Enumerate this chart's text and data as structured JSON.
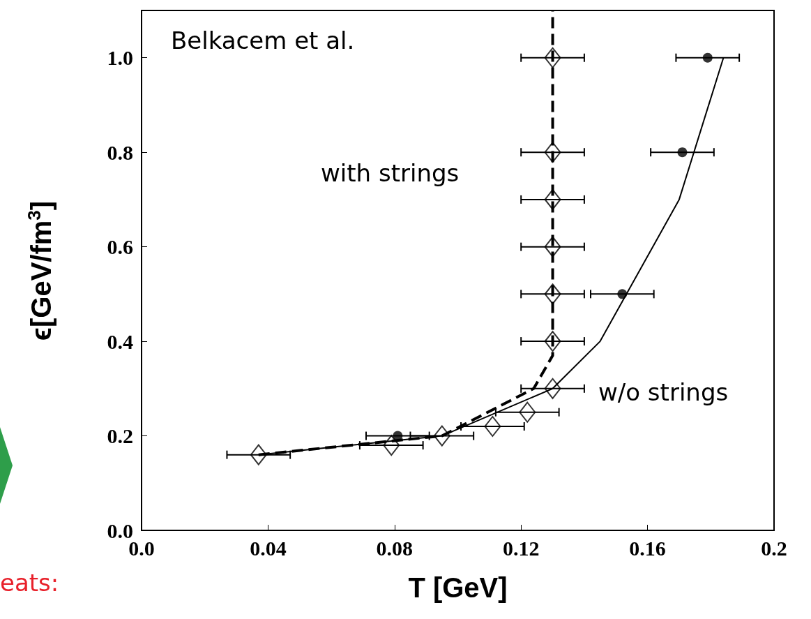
{
  "chart_data": {
    "type": "scatter",
    "xlabel": "T [GeV]",
    "ylabel": "ϵ[GeV/fm$^{3}$]",
    "xlim": [
      0,
      0.2
    ],
    "xticks": [
      {
        "value": 0,
        "label": "0.0"
      },
      0.04,
      0.08,
      0.12,
      0.16,
      0.2
    ],
    "ylim": [
      0,
      1.1
    ],
    "yticks": [
      {
        "value": 0,
        "label": "0.0"
      },
      0.2,
      0.4,
      0.6,
      0.8,
      {
        "value": 1,
        "label": "1.0"
      }
    ],
    "grid": false,
    "series": [
      {
        "marker": "diamond",
        "color": "#000000",
        "x": [
          0.037,
          0.079,
          0.095,
          0.111,
          0.122,
          0.13,
          0.13,
          0.13,
          0.13,
          0.13,
          0.13,
          0.13
        ],
        "values": [
          0.16,
          0.18,
          0.2,
          0.22,
          0.25,
          0.3,
          0.4,
          0.5,
          0.6,
          0.7,
          0.8,
          1.0
        ],
        "xerrors": [
          0.01,
          0.01,
          0.01,
          0.01,
          0.01,
          0.01,
          0.01,
          0.01,
          0.01,
          0.01,
          0.01,
          0.01
        ]
      },
      {
        "marker": "circle",
        "color": "#000000",
        "x": [
          0.081,
          0.152,
          0.171,
          0.179
        ],
        "values": [
          0.2,
          0.5,
          0.8,
          1.0
        ],
        "xerrors": [
          0.01,
          0.01,
          0.01,
          0.01
        ]
      },
      {
        "type": "line",
        "marker": "none",
        "line_style": "solid",
        "color": "#000000",
        "x": [
          0.037,
          0.095,
          0.13,
          0.145,
          0.17,
          0.184
        ],
        "values": [
          0.16,
          0.2,
          0.3,
          0.4,
          0.7,
          1.0
        ]
      },
      {
        "type": "line",
        "marker": "none",
        "line_style": "dashed",
        "color": "#000000",
        "x": [
          0.037,
          0.095,
          0.124,
          0.13,
          0.13
        ],
        "values": [
          0.16,
          0.2,
          0.3,
          0.37,
          1.1
        ]
      }
    ],
    "annotations": [
      "Belkacem et al.",
      "with strings",
      "w/o strings",
      "eats:"
    ]
  }
}
